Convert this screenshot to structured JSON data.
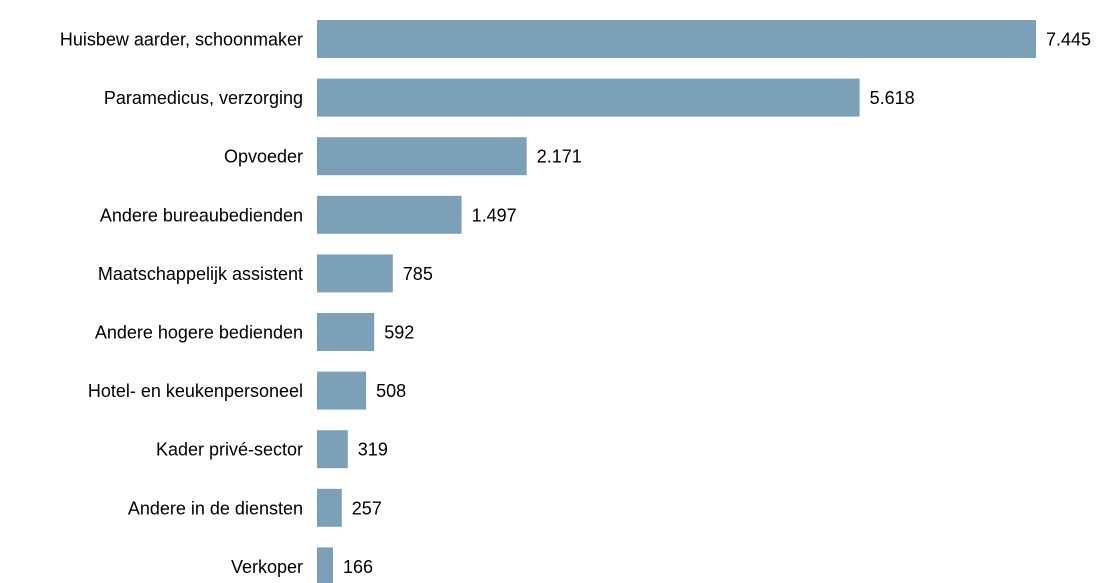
{
  "chart_data": {
    "type": "bar",
    "orientation": "horizontal",
    "categories": [
      "Huisbew aarder, schoonmaker",
      "Paramedicus, verzorging",
      "Opvoeder",
      "Andere bureaubedienden",
      "Maatschappelijk assistent",
      "Andere hogere bedienden",
      "Hotel- en keukenpersoneel",
      "Kader privé-sector",
      "Andere in de diensten",
      "Verkoper"
    ],
    "values": [
      7445,
      5618,
      2171,
      1497,
      785,
      592,
      508,
      319,
      257,
      166
    ],
    "value_labels": [
      "7.445",
      "5.618",
      "2.171",
      "1.497",
      "785",
      "592",
      "508",
      "319",
      "257",
      "166"
    ],
    "bar_color": "#7ba0b8",
    "xlim": [
      0,
      7445
    ],
    "grid": false,
    "legend": "none"
  }
}
